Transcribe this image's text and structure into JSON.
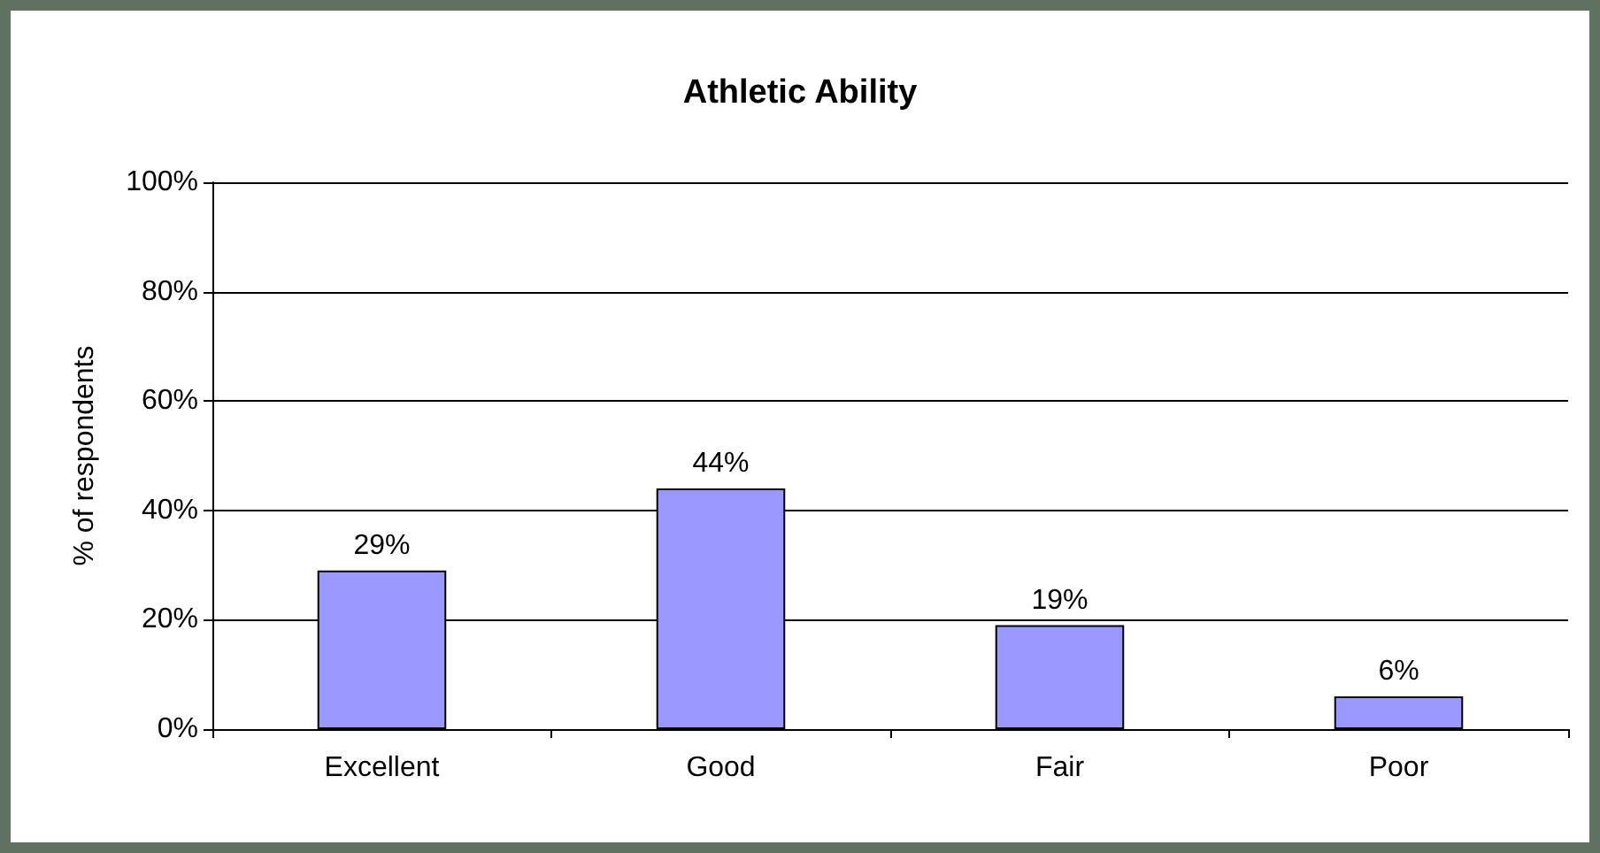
{
  "chart_data": {
    "type": "bar",
    "title": "Athletic Ability",
    "ylabel": "% of respondents",
    "categories": [
      "Excellent",
      "Good",
      "Fair",
      "Poor"
    ],
    "values": [
      29,
      44,
      19,
      6
    ],
    "value_labels": [
      "29%",
      "44%",
      "19%",
      "6%"
    ],
    "color": "#9999ff",
    "ylim": [
      0,
      100
    ],
    "yticks": [
      {
        "value": 0,
        "label": "0%"
      },
      {
        "value": 20,
        "label": "20%"
      },
      {
        "value": 40,
        "label": "40%"
      },
      {
        "value": 60,
        "label": "60%"
      },
      {
        "value": 80,
        "label": "80%"
      },
      {
        "value": 100,
        "label": "100%"
      }
    ],
    "grid": "y"
  }
}
